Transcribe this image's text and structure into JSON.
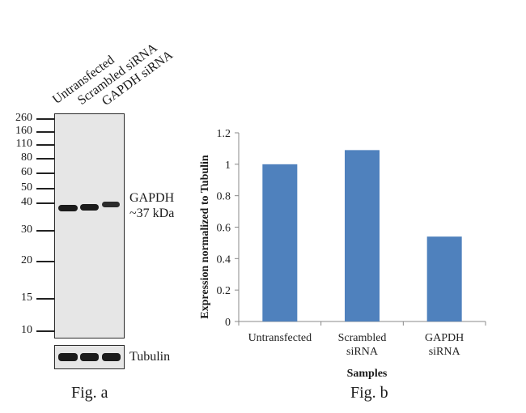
{
  "figure_a": {
    "lane_labels": [
      "Untransfected",
      "Scrambled siRNA",
      "GAPDH siRNA"
    ],
    "mw_markers": [
      "260",
      "160",
      "110",
      "80",
      "60",
      "50",
      "40",
      "30",
      "20",
      "15",
      "10"
    ],
    "band_annotation": [
      "GAPDH",
      "~37 kDa"
    ],
    "loading_control": "Tubulin",
    "label": "Fig. a"
  },
  "figure_b": {
    "label": "Fig. b"
  },
  "colors": {
    "bar": "#4f81bd",
    "axis": "#888888"
  },
  "chart_data": {
    "type": "bar",
    "categories": [
      "Untransfected",
      "Scrambled siRNA",
      "GAPDH siRNA"
    ],
    "category_lines": [
      [
        "Untransfected"
      ],
      [
        "Scrambled",
        "siRNA"
      ],
      [
        "GAPDH",
        "siRNA"
      ]
    ],
    "values": [
      1.0,
      1.09,
      0.54
    ],
    "ylabel": "Expression normalized to Tubulin",
    "xlabel": "Samples",
    "ylim": [
      0,
      1.2
    ],
    "yticks": [
      "0",
      "0.2",
      "0.4",
      "0.6",
      "0.8",
      "1",
      "1.2"
    ],
    "grid": false
  }
}
